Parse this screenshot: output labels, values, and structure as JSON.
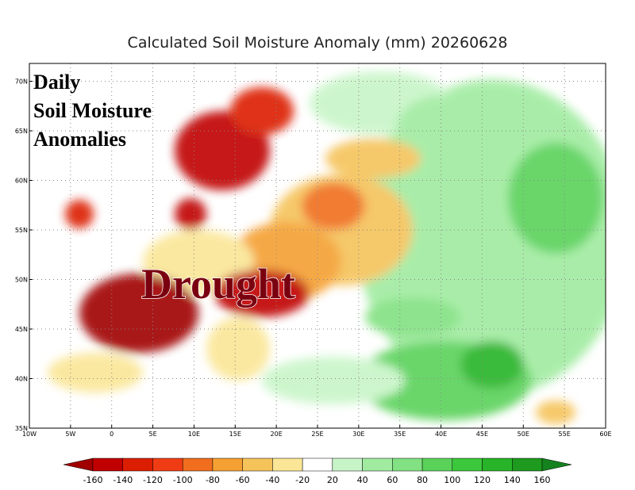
{
  "map": {
    "title": "Calculated Soil Moisture Anomaly (mm) 20260628",
    "overlay_text": [
      "Daily",
      "Soil Moisture",
      "Anomalies"
    ],
    "label": "Drought",
    "xlim": [
      -10,
      60
    ],
    "ylim": [
      35,
      71.8
    ],
    "xticks": [
      {
        "value": -10,
        "label": "10W"
      },
      {
        "value": -5,
        "label": "5W"
      },
      0,
      {
        "value": 5,
        "label": "5E"
      },
      {
        "value": 10,
        "label": "10E"
      },
      {
        "value": 15,
        "label": "15E"
      },
      {
        "value": 20,
        "label": "20E"
      },
      {
        "value": 25,
        "label": "25E"
      },
      {
        "value": 30,
        "label": "30E"
      },
      {
        "value": 35,
        "label": "35E"
      },
      {
        "value": 40,
        "label": "40E"
      },
      {
        "value": 45,
        "label": "45E"
      },
      {
        "value": 50,
        "label": "50E"
      },
      {
        "value": 55,
        "label": "55E"
      },
      {
        "value": 60,
        "label": "60E"
      }
    ],
    "yticks": [
      {
        "value": 35,
        "label": "35N"
      },
      {
        "value": 40,
        "label": "40N"
      },
      {
        "value": 45,
        "label": "45N"
      },
      {
        "value": 50,
        "label": "50N"
      },
      {
        "value": 55,
        "label": "55N"
      },
      {
        "value": 60,
        "label": "60N"
      },
      {
        "value": 65,
        "label": "65N"
      },
      {
        "value": 70,
        "label": "70N"
      }
    ],
    "grid": true
  },
  "colorbar": {
    "levels": [
      -160,
      -140,
      -120,
      -100,
      -80,
      -60,
      -40,
      -20,
      20,
      40,
      60,
      80,
      100,
      120,
      140,
      160
    ],
    "colors": [
      "#a00000",
      "#c00000",
      "#dc1e00",
      "#f03c14",
      "#f06e1e",
      "#f5a032",
      "#f5c35a",
      "#fae696",
      "#ffffff",
      "#c8f5c8",
      "#a0eba0",
      "#82e182",
      "#5ad25a",
      "#3cc83c",
      "#28b428",
      "#1e9a1e",
      "#14821e"
    ]
  }
}
